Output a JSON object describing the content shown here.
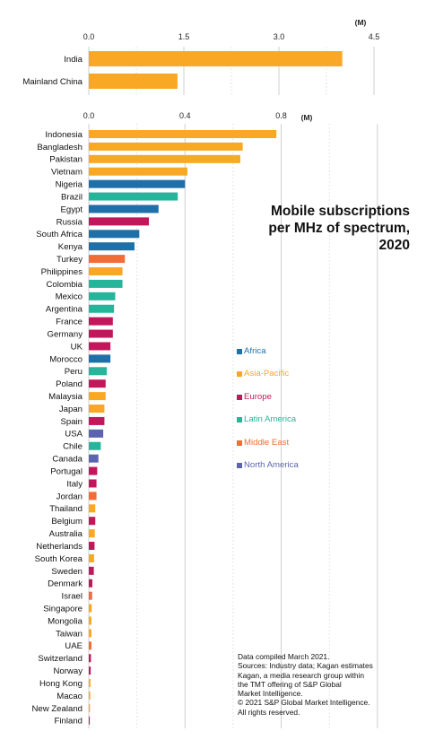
{
  "chart_data": [
    {
      "type": "bar",
      "orientation": "horizontal",
      "unit": "(M)",
      "ticks": [
        "0.0",
        "1.5",
        "3.0",
        "4.5"
      ],
      "xlim": [
        0,
        4.5
      ],
      "grid": true,
      "categories": [
        "India",
        "Mainland China"
      ],
      "values": [
        4.0,
        1.4
      ],
      "regions": [
        "Asia-Pacific",
        "Asia-Pacific"
      ]
    },
    {
      "type": "bar",
      "orientation": "horizontal",
      "unit": "(M)",
      "ticks": [
        "0.0",
        "0.4",
        "0.8"
      ],
      "xlim": [
        0,
        1.32
      ],
      "grid": true,
      "categories": [
        "Indonesia",
        "Bangladesh",
        "Pakistan",
        "Vietnam",
        "Nigeria",
        "Brazil",
        "Egypt",
        "Russia",
        "South Africa",
        "Kenya",
        "Turkey",
        "Philippines",
        "Colombia",
        "Mexico",
        "Argentina",
        "France",
        "Germany",
        "UK",
        "Morocco",
        "Peru",
        "Poland",
        "Malaysia",
        "Japan",
        "Spain",
        "USA",
        "Chile",
        "Canada",
        "Portugal",
        "Italy",
        "Jordan",
        "Thailand",
        "Belgium",
        "Australia",
        "Netherlands",
        "South Korea",
        "Sweden",
        "Denmark",
        "Israel",
        "Singapore",
        "Mongolia",
        "Taiwan",
        "UAE",
        "Switzerland",
        "Norway",
        "Hong Kong",
        "Macao",
        "New Zealand",
        "Finland"
      ],
      "values": [
        0.78,
        0.64,
        0.63,
        0.41,
        0.4,
        0.37,
        0.29,
        0.25,
        0.21,
        0.19,
        0.15,
        0.14,
        0.14,
        0.11,
        0.105,
        0.1,
        0.1,
        0.09,
        0.09,
        0.075,
        0.07,
        0.07,
        0.065,
        0.065,
        0.06,
        0.05,
        0.04,
        0.035,
        0.032,
        0.032,
        0.027,
        0.027,
        0.025,
        0.024,
        0.022,
        0.021,
        0.015,
        0.014,
        0.012,
        0.011,
        0.011,
        0.011,
        0.009,
        0.008,
        0.007,
        0.006,
        0.005,
        0.004
      ],
      "regions": [
        "Asia-Pacific",
        "Asia-Pacific",
        "Asia-Pacific",
        "Asia-Pacific",
        "Africa",
        "Latin America",
        "Africa",
        "Europe",
        "Africa",
        "Africa",
        "Middle East",
        "Asia-Pacific",
        "Latin America",
        "Latin America",
        "Latin America",
        "Europe",
        "Europe",
        "Europe",
        "Africa",
        "Latin America",
        "Europe",
        "Asia-Pacific",
        "Asia-Pacific",
        "Europe",
        "North America",
        "Latin America",
        "North America",
        "Europe",
        "Europe",
        "Middle East",
        "Asia-Pacific",
        "Europe",
        "Asia-Pacific",
        "Europe",
        "Asia-Pacific",
        "Europe",
        "Europe",
        "Middle East",
        "Asia-Pacific",
        "Asia-Pacific",
        "Asia-Pacific",
        "Middle East",
        "Europe",
        "Europe",
        "Asia-Pacific",
        "Asia-Pacific",
        "Asia-Pacific",
        "Europe"
      ]
    }
  ],
  "title_lines": [
    "Mobile subscriptions",
    "per MHz of spectrum,",
    "2020"
  ],
  "legend": [
    {
      "name": "Africa",
      "color": "#1f6fa8"
    },
    {
      "name": "Asia-Pacific",
      "color": "#f9a825"
    },
    {
      "name": "Europe",
      "color": "#c2185b"
    },
    {
      "name": "Latin America",
      "color": "#26b59a"
    },
    {
      "name": "Middle East",
      "color": "#f26b38"
    },
    {
      "name": "North America",
      "color": "#5c63b0"
    }
  ],
  "source_lines": [
    "Data compiled March 2021.",
    "Sources: Industry data; Kagan estimates",
    "Kagan, a media research group within",
    "the TMT offering of S&P Global",
    "Market Intelligence.",
    "© 2021 S&P Global Market Intelligence.",
    "All rights reserved."
  ]
}
